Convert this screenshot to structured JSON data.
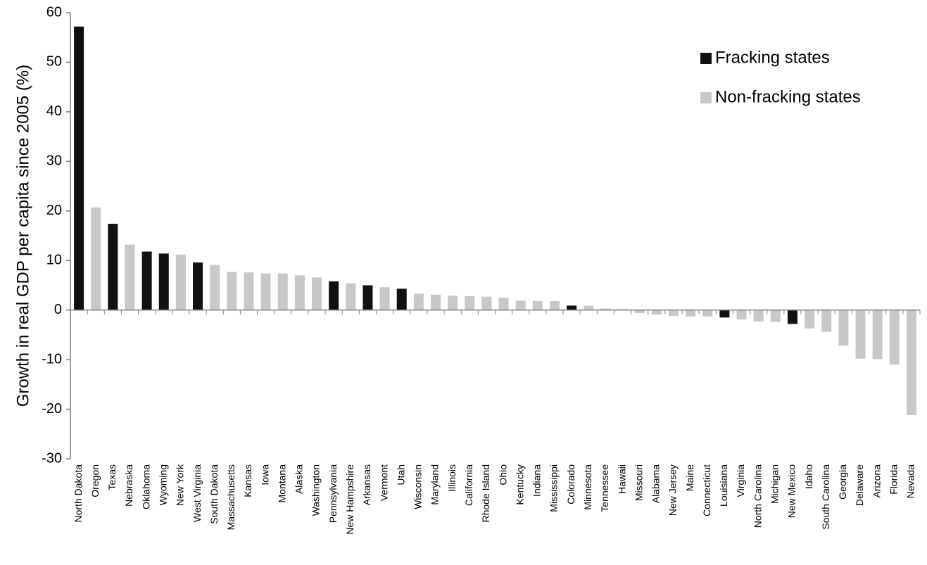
{
  "chart_data": {
    "type": "bar",
    "y_label": "Growth in real GDP per capita since 2005 (%)",
    "categories": [
      "North Dakota",
      "Oregon",
      "Texas",
      "Nebraska",
      "Oklahoma",
      "Wyoming",
      "New York",
      "West Virginia",
      "South Dakota",
      "Massachusetts",
      "Kansas",
      "Iowa",
      "Montana",
      "Alaska",
      "Washington",
      "Pennsylvania",
      "New Hampshire",
      "Arkansas",
      "Vermont",
      "Utah",
      "Wisconsin",
      "Maryland",
      "Illinois",
      "California",
      "Rhode Island",
      "Ohio",
      "Kentucky",
      "Indiana",
      "Mississippi",
      "Colorado",
      "Minnesota",
      "Tennessee",
      "Hawaii",
      "Missouri",
      "Alabama",
      "New Jersey",
      "Maine",
      "Connecticut",
      "Louisiana",
      "Virginia",
      "North Carolina",
      "Michigan",
      "New Mexico",
      "Idaho",
      "South Carolina",
      "Georgia",
      "Delaware",
      "Arizona",
      "Florida",
      "Nevada"
    ],
    "series": [
      {
        "name": "Fracking states",
        "color": "#111111",
        "values": [
          57.2,
          null,
          17.4,
          null,
          11.8,
          11.4,
          null,
          9.6,
          null,
          null,
          null,
          null,
          null,
          null,
          null,
          5.8,
          null,
          5.0,
          null,
          4.3,
          null,
          null,
          null,
          null,
          null,
          null,
          null,
          null,
          null,
          0.9,
          null,
          null,
          null,
          null,
          null,
          null,
          null,
          null,
          -1.5,
          null,
          null,
          null,
          -2.8,
          null,
          null,
          null,
          null,
          null,
          null,
          null
        ]
      },
      {
        "name": "Non-fracking states",
        "color": "#c8c8c8",
        "values": [
          null,
          20.7,
          null,
          13.2,
          null,
          null,
          11.2,
          null,
          9.1,
          7.7,
          7.6,
          7.4,
          7.4,
          7.0,
          6.6,
          null,
          5.4,
          null,
          4.6,
          null,
          3.3,
          3.1,
          2.9,
          2.8,
          2.7,
          2.5,
          1.9,
          1.8,
          1.8,
          null,
          0.9,
          0.3,
          0.2,
          -0.6,
          -0.9,
          -1.2,
          -1.3,
          -1.3,
          null,
          -1.9,
          -2.3,
          -2.4,
          null,
          -3.7,
          -4.4,
          -7.2,
          -9.8,
          -9.9,
          -11.0,
          -21.2
        ]
      }
    ],
    "ylim": [
      -30,
      60
    ],
    "yticks": [
      -30,
      -20,
      -10,
      0,
      10,
      20,
      30,
      40,
      50,
      60
    ],
    "legend": "top-right"
  }
}
